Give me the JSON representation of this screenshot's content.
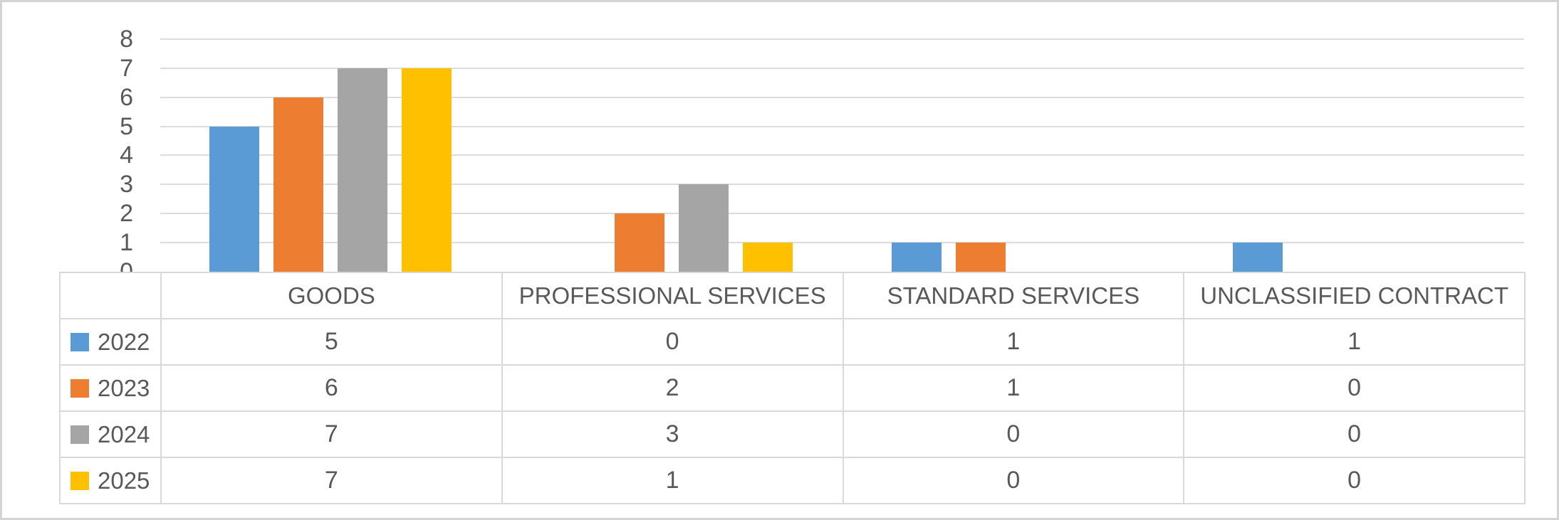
{
  "chart_data": {
    "type": "bar",
    "title": "",
    "xlabel": "",
    "ylabel": "",
    "categories": [
      "GOODS",
      "PROFESSIONAL SERVICES",
      "STANDARD SERVICES",
      "UNCLASSIFIED CONTRACT"
    ],
    "series": [
      {
        "name": "2022",
        "color": "#5B9BD5",
        "values": [
          5,
          0,
          1,
          1
        ]
      },
      {
        "name": "2023",
        "color": "#ED7D31",
        "values": [
          6,
          2,
          1,
          0
        ]
      },
      {
        "name": "2024",
        "color": "#A5A5A5",
        "values": [
          7,
          3,
          0,
          0
        ]
      },
      {
        "name": "2025",
        "color": "#FFC000",
        "values": [
          7,
          1,
          0,
          0
        ]
      }
    ],
    "ylim": [
      0,
      8
    ],
    "ytick_step": 1,
    "grid": true,
    "legend_position": "data-table-left",
    "data_table_shown": true
  },
  "colors": {
    "text": "#595959",
    "gridline": "#DCDCDC",
    "table_border": "#D9D9D9",
    "frame_border": "#D4D4D4",
    "background": "#FFFFFF"
  }
}
